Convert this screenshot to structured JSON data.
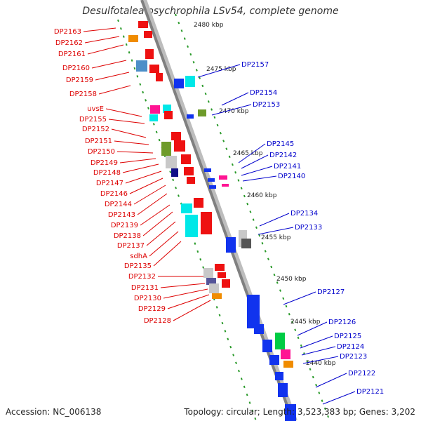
{
  "title": "Desulfotalea psychrophila LSv54, complete genome",
  "footer": {
    "accession": "Accession: NC_006138",
    "stats": "Topology: circular; Length: 3,523,383 bp; Genes: 3,202"
  },
  "colors": {
    "left_labels": "#dd0000",
    "right_labels": "#0000cc",
    "axis": "#808080",
    "tick": "#2a9a2a"
  },
  "kbp_labels": [
    "2480 kbp",
    "2475 kbp",
    "2470 kbp",
    "2465 kbp",
    "2460 kbp",
    "2455 kbp",
    "2450 kbp",
    "2445 kbp",
    "2440 kbp"
  ],
  "left_genes": [
    "DP2163",
    "DP2162",
    "DP2161",
    "DP2160",
    "DP2159",
    "DP2158",
    "uvsE",
    "DP2155",
    "DP2152",
    "DP2151",
    "DP2150",
    "DP2149",
    "DP2148",
    "DP2147",
    "DP2146",
    "DP2144",
    "DP2143",
    "DP2139",
    "DP2138",
    "DP2137",
    "sdhA",
    "DP2135",
    "DP2132",
    "DP2131",
    "DP2130",
    "DP2129",
    "DP2128"
  ],
  "right_genes": [
    "DP2157",
    "DP2154",
    "DP2153",
    "DP2145",
    "DP2142",
    "DP2141",
    "DP2140",
    "DP2134",
    "DP2133",
    "DP2127",
    "DP2126",
    "DP2125",
    "DP2124",
    "DP2123",
    "DP2122",
    "DP2121"
  ]
}
